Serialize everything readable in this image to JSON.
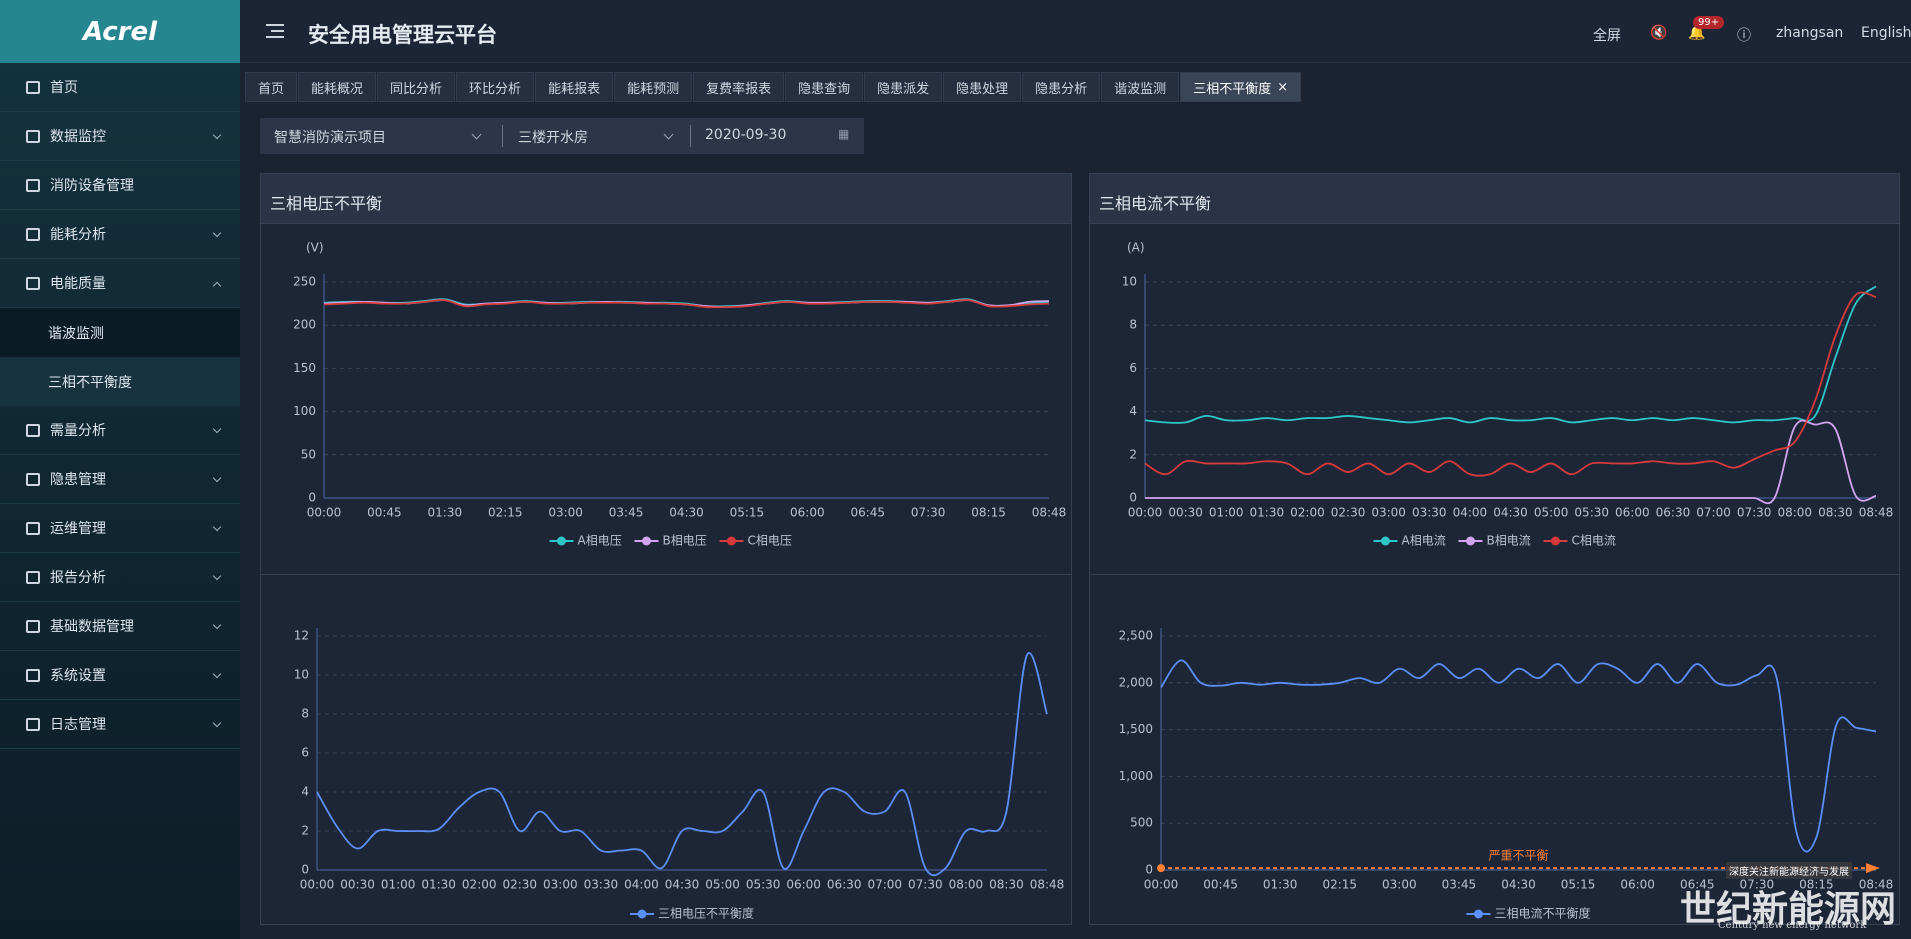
{
  "logo": "Acrel",
  "menu": [
    "首页",
    "数据监控",
    "消防设备管理",
    "能耗分析",
    "电能质量",
    "谐波监测",
    "三相不平衡度",
    "需量分析",
    "隐患管理",
    "运维管理",
    "报告分析",
    "基础数据管理",
    "系统设置",
    "日志管理"
  ],
  "header": {
    "title": "安全用电管理云平台",
    "fullscreen": "全屏",
    "badge": "99+",
    "user": "zhangsan",
    "language": "English"
  },
  "tabs": [
    "首页",
    "能耗概况",
    "同比分析",
    "环比分析",
    "能耗报表",
    "能耗预测",
    "复费率报表",
    "隐患查询",
    "隐患派发",
    "隐患处理",
    "隐患分析",
    "谐波监测",
    "三相不平衡度"
  ],
  "filters": {
    "project": "智慧消防演示项目",
    "room": "三楼开水房",
    "date": "2020-09-30"
  },
  "panels": [
    "三相电压不平衡",
    "三相电流不平衡"
  ],
  "watermark": {
    "title": "世纪新能源网",
    "subtitle": "Century new energy network",
    "slogan": "深度关注新能源经济与发展"
  },
  "chart_data": [
    {
      "type": "line",
      "y_label": "(V)",
      "categories": [
        "00:00",
        null,
        null,
        "00:45",
        null,
        null,
        "01:30",
        null,
        null,
        "02:15",
        null,
        null,
        "03:00",
        null,
        null,
        "03:45",
        null,
        null,
        "04:30",
        null,
        null,
        "05:15",
        null,
        null,
        "06:00",
        null,
        null,
        "06:45",
        null,
        null,
        "07:30",
        null,
        null,
        "08:15",
        null,
        null,
        "08:48"
      ],
      "series": [
        {
          "name": "A相电压",
          "color": "#2ec7c9",
          "values": [
            226,
            227,
            227,
            226,
            226,
            228,
            230,
            224,
            225,
            226,
            228,
            226,
            226,
            227,
            227,
            227,
            226,
            226,
            225,
            222,
            222,
            223,
            226,
            228,
            226,
            226,
            227,
            228,
            228,
            227,
            226,
            228,
            230,
            223,
            223,
            225,
            227
          ]
        },
        {
          "name": "B相电压",
          "color": "#d3a4f0",
          "values": [
            225,
            226,
            227,
            226,
            225,
            227,
            229,
            223,
            225,
            226,
            227,
            226,
            225,
            226,
            227,
            226,
            226,
            225,
            224,
            222,
            221,
            223,
            225,
            227,
            226,
            226,
            226,
            227,
            227,
            227,
            226,
            227,
            229,
            223,
            223,
            227,
            228
          ]
        },
        {
          "name": "C相电压",
          "color": "#d63a3a",
          "values": [
            224,
            225,
            226,
            225,
            225,
            227,
            229,
            222,
            224,
            225,
            227,
            225,
            225,
            226,
            226,
            226,
            225,
            225,
            224,
            221,
            221,
            222,
            225,
            227,
            225,
            225,
            226,
            227,
            227,
            226,
            225,
            227,
            229,
            222,
            222,
            224,
            225
          ]
        }
      ],
      "ylim": [
        0,
        250
      ],
      "yticks": [
        0,
        50,
        100,
        150,
        200,
        250
      ],
      "grid": true
    },
    {
      "type": "line",
      "y_label": "(A)",
      "categories": [
        "00:00",
        null,
        "00:30",
        null,
        "01:00",
        null,
        "01:30",
        null,
        "02:00",
        null,
        "02:30",
        null,
        "03:00",
        null,
        "03:30",
        null,
        "04:00",
        null,
        "04:30",
        null,
        "05:00",
        null,
        "05:30",
        null,
        "06:00",
        null,
        "06:30",
        null,
        "07:00",
        null,
        "07:30",
        null,
        "08:00",
        null,
        "08:30",
        null,
        "08:48"
      ],
      "series": [
        {
          "name": "A相电流",
          "color": "#2ec7c9",
          "values": [
            3.6,
            3.5,
            3.5,
            3.8,
            3.6,
            3.6,
            3.7,
            3.6,
            3.7,
            3.7,
            3.8,
            3.7,
            3.6,
            3.5,
            3.6,
            3.7,
            3.5,
            3.7,
            3.6,
            3.6,
            3.7,
            3.5,
            3.6,
            3.7,
            3.6,
            3.7,
            3.6,
            3.7,
            3.6,
            3.5,
            3.6,
            3.6,
            3.7,
            3.8,
            6.5,
            9.0,
            9.8
          ]
        },
        {
          "name": "B相电流",
          "color": "#d3a4f0",
          "values": [
            0,
            0,
            0,
            0,
            0,
            0,
            0,
            0,
            0,
            0,
            0,
            0,
            0,
            0,
            0,
            0,
            0,
            0,
            0,
            0,
            0,
            0,
            0,
            0,
            0,
            0,
            0,
            0,
            0,
            0,
            0,
            0,
            3.3,
            3.4,
            3.2,
            0.1,
            0.1
          ]
        },
        {
          "name": "C相电流",
          "color": "#d63a3a",
          "values": [
            1.6,
            1.1,
            1.7,
            1.6,
            1.6,
            1.6,
            1.7,
            1.6,
            1.1,
            1.6,
            1.2,
            1.6,
            1.1,
            1.6,
            1.2,
            1.7,
            1.1,
            1.1,
            1.6,
            1.2,
            1.6,
            1.1,
            1.6,
            1.6,
            1.6,
            1.7,
            1.6,
            1.6,
            1.7,
            1.4,
            1.8,
            2.2,
            2.6,
            4.5,
            7.5,
            9.4,
            9.3
          ]
        }
      ],
      "ylim": [
        0,
        10
      ],
      "yticks": [
        0,
        2,
        4,
        6,
        8,
        10
      ],
      "grid": true
    },
    {
      "type": "line",
      "categories": [
        "00:00",
        null,
        "00:30",
        null,
        "01:00",
        null,
        "01:30",
        null,
        "02:00",
        null,
        "02:30",
        null,
        "03:00",
        null,
        "03:30",
        null,
        "04:00",
        null,
        "04:30",
        null,
        "05:00",
        null,
        "05:30",
        null,
        "06:00",
        null,
        "06:30",
        null,
        "07:00",
        null,
        "07:30",
        null,
        "08:00",
        null,
        "08:30",
        null,
        "08:48"
      ],
      "series": [
        {
          "name": "三相电压不平衡度",
          "color": "#5b8ff9",
          "values": [
            4,
            2.2,
            1.1,
            2,
            2,
            2,
            2.1,
            3.2,
            4,
            4,
            2,
            3,
            2,
            2,
            1,
            1,
            1,
            0.1,
            2,
            2,
            2,
            3,
            4,
            0.1,
            2,
            4,
            4,
            3,
            3,
            4,
            0.1,
            0.1,
            2,
            2,
            3,
            11,
            8
          ]
        }
      ],
      "ylim": [
        0,
        12
      ],
      "yticks": [
        0,
        2,
        4,
        6,
        8,
        10,
        12
      ],
      "grid": true
    },
    {
      "type": "line",
      "categories": [
        "00:00",
        null,
        null,
        "00:45",
        null,
        null,
        "01:30",
        null,
        null,
        "02:15",
        null,
        null,
        "03:00",
        null,
        null,
        "03:45",
        null,
        null,
        "04:30",
        null,
        null,
        "05:15",
        null,
        null,
        "06:00",
        null,
        null,
        "06:45",
        null,
        null,
        "07:30",
        null,
        null,
        "08:15",
        null,
        null,
        "08:48"
      ],
      "series": [
        {
          "name": "三相电流不平衡度",
          "color": "#5b8ff9",
          "values": [
            1950,
            2240,
            2000,
            1970,
            2000,
            1980,
            2000,
            1980,
            1980,
            2000,
            2050,
            2000,
            2150,
            2050,
            2200,
            2050,
            2150,
            2000,
            2150,
            2050,
            2200,
            2000,
            2200,
            2150,
            2000,
            2200,
            2000,
            2200,
            2000,
            1980,
            2080,
            2050,
            400,
            350,
            1550,
            1520,
            1480
          ]
        }
      ],
      "ylim": [
        0,
        2500
      ],
      "yticks": [
        0,
        500,
        {
          "value": 1000,
          "label": "1,000"
        },
        {
          "value": 1500,
          "label": "1,500"
        },
        {
          "value": 2000,
          "label": "2,000"
        },
        {
          "value": 2500,
          "label": "2,500"
        }
      ],
      "grid": true,
      "annotation": {
        "value": 20,
        "label": "严重不平衡",
        "color": "#ff7f32"
      }
    }
  ]
}
